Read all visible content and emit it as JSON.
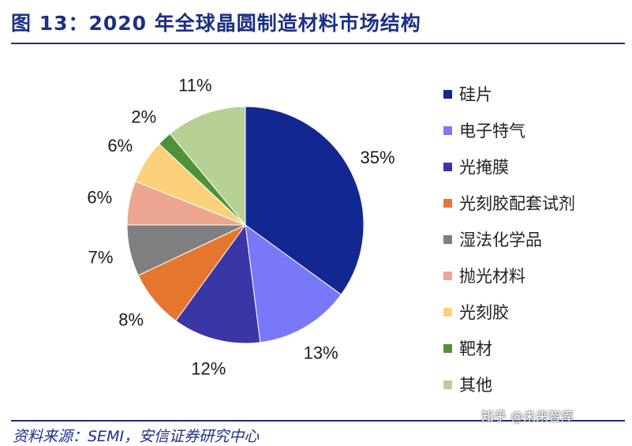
{
  "header": {
    "title": "图 13：2020 年全球晶圆制造材料市场结构"
  },
  "footer": {
    "source": "资料来源：SEMI，安信证券研究中心",
    "watermark": "知乎 @未来智库"
  },
  "chart_data": {
    "type": "pie",
    "title": "图 13：2020 年全球晶圆制造材料市场结构",
    "categories": [
      "硅片",
      "电子特气",
      "光掩膜",
      "光刻胶配套试剂",
      "湿法化学品",
      "抛光材料",
      "光刻胶",
      "靶材",
      "其他"
    ],
    "values": [
      35,
      13,
      12,
      8,
      7,
      6,
      6,
      2,
      11
    ],
    "labels": [
      "35%",
      "13%",
      "12%",
      "8%",
      "7%",
      "6%",
      "6%",
      "2%",
      "11%"
    ],
    "colors": [
      "#132790",
      "#7878f8",
      "#3a36a6",
      "#e5762e",
      "#7f7f7f",
      "#eda68f",
      "#fbd17a",
      "#4f9137",
      "#b7d094"
    ],
    "legend_position": "right",
    "start": "12 o'clock, clockwise"
  }
}
